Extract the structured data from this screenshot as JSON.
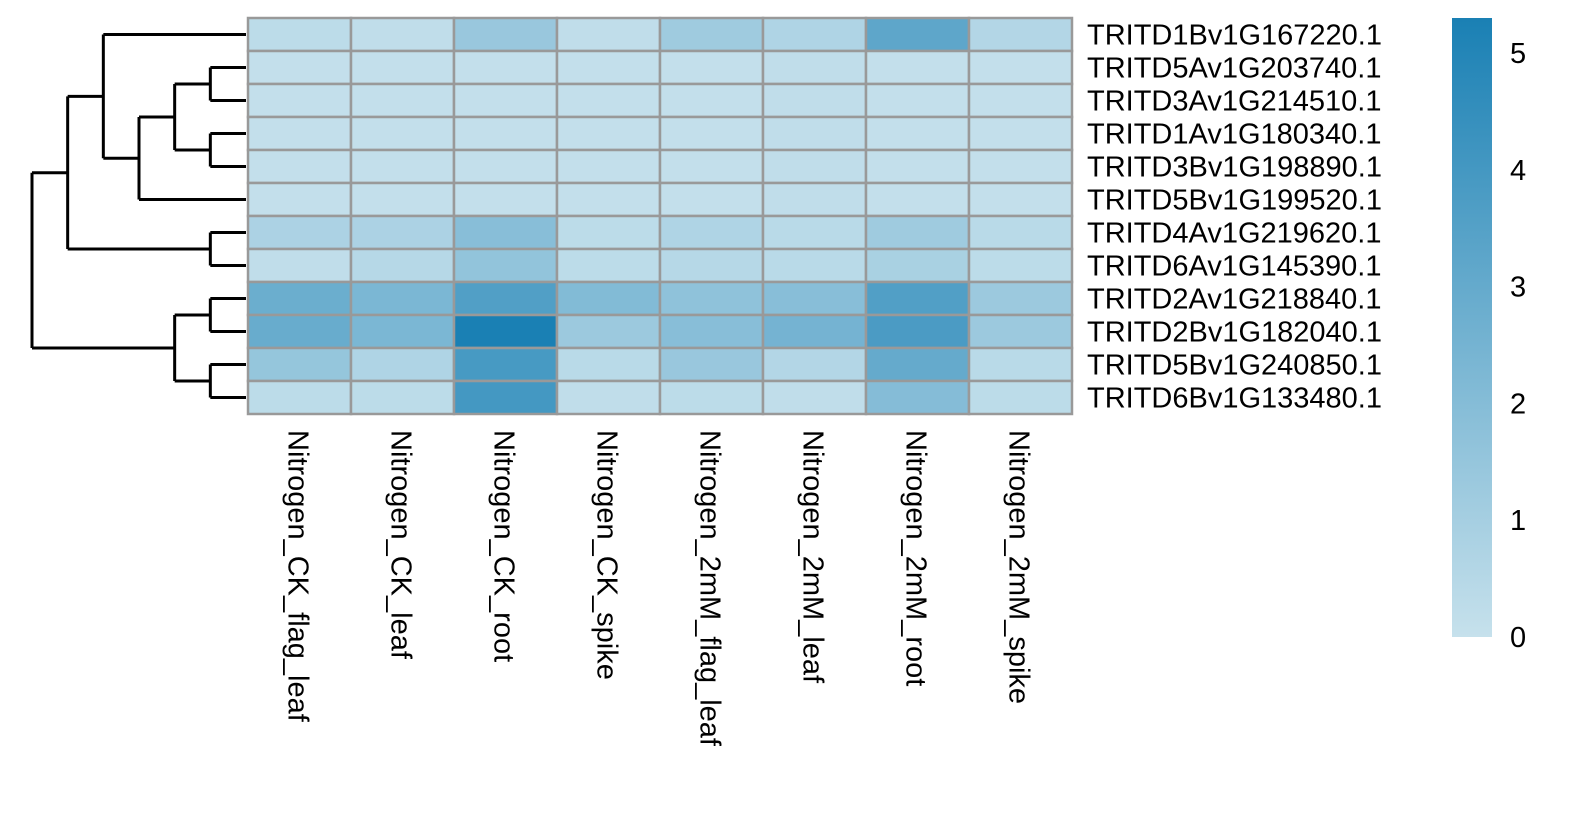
{
  "chart_data": {
    "type": "heatmap",
    "columns": [
      "Nitrogen_CK_flag_leaf",
      "Nitrogen_CK_leaf",
      "Nitrogen_CK_root",
      "Nitrogen_CK_spike",
      "Nitrogen_2mM_flag_leaf",
      "Nitrogen_2mM_leaf",
      "Nitrogen_2mM_root",
      "Nitrogen_2mM_spike"
    ],
    "rows": [
      "TRITD1Bv1G167220.1",
      "TRITD5Av1G203740.1",
      "TRITD3Av1G214510.1",
      "TRITD1Av1G180340.1",
      "TRITD3Bv1G198890.1",
      "TRITD5Bv1G199520.1",
      "TRITD4Av1G219620.1",
      "TRITD6Av1G145390.1",
      "TRITD2Av1G218840.1",
      "TRITD2Bv1G182040.1",
      "TRITD5Bv1G240850.1",
      "TRITD6Bv1G133480.1"
    ],
    "values": [
      [
        0.3,
        0.2,
        1.4,
        0.2,
        1.2,
        0.7,
        3.2,
        0.6
      ],
      [
        0.1,
        0.1,
        0.1,
        0.1,
        0.1,
        0.2,
        0.1,
        0.1
      ],
      [
        0.1,
        0.1,
        0.1,
        0.1,
        0.1,
        0.2,
        0.1,
        0.1
      ],
      [
        0.1,
        0.1,
        0.1,
        0.1,
        0.1,
        0.2,
        0.1,
        0.1
      ],
      [
        0.1,
        0.1,
        0.1,
        0.1,
        0.1,
        0.2,
        0.1,
        0.1
      ],
      [
        0.1,
        0.1,
        0.1,
        0.1,
        0.1,
        0.2,
        0.1,
        0.1
      ],
      [
        0.8,
        0.8,
        1.9,
        0.3,
        0.7,
        0.4,
        1.2,
        0.4
      ],
      [
        0.2,
        0.5,
        1.6,
        0.3,
        0.5,
        0.4,
        0.9,
        0.3
      ],
      [
        2.8,
        2.3,
        3.6,
        2.1,
        1.7,
        1.9,
        3.6,
        1.3
      ],
      [
        2.9,
        2.3,
        5.3,
        1.3,
        1.9,
        2.5,
        3.8,
        1.3
      ],
      [
        1.5,
        0.7,
        3.9,
        0.4,
        1.4,
        0.6,
        3.0,
        0.4
      ],
      [
        0.3,
        0.3,
        4.0,
        0.2,
        0.3,
        0.2,
        2.0,
        0.3
      ]
    ],
    "color_scale": {
      "min": 0,
      "max": 5.3,
      "low_color": "#c6e1ec",
      "high_color": "#1a80b4",
      "cell_border": "#999999",
      "ticks": [
        "0",
        "1",
        "2",
        "3",
        "4",
        "5"
      ]
    },
    "dendrogram": {
      "side": "left",
      "tree": [
        [
          [
            0,
            [
              [
                [
                  1,
                  2
                ],
                [
                  3,
                  4
                ]
              ],
              5
            ]
          ],
          [
            6,
            7
          ]
        ],
        [
          [
            8,
            9
          ],
          [
            10,
            11
          ]
        ]
      ]
    }
  }
}
